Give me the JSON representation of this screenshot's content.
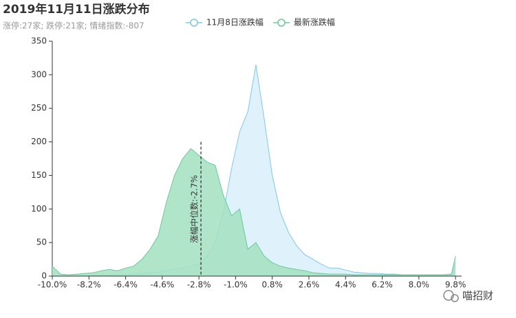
{
  "chart_data": {
    "type": "area",
    "title": "2019年11月11日涨跌分布",
    "subtitle": "涨停:27家; 跌停:21家; 情绪指数:-807",
    "watermark": "喵招财",
    "x": [
      -10,
      -9.6,
      -9.2,
      -8.8,
      -8.4,
      -8,
      -7.6,
      -7.2,
      -6.8,
      -6.4,
      -6,
      -5.6,
      -5.2,
      -4.8,
      -4.4,
      -4,
      -3.6,
      -3.2,
      -2.8,
      -2.4,
      -2,
      -1.6,
      -1.2,
      -0.8,
      -0.4,
      0,
      0.4,
      0.8,
      1.2,
      1.6,
      2,
      2.4,
      2.8,
      3.2,
      3.6,
      4,
      4.4,
      4.8,
      5.2,
      5.6,
      6,
      6.4,
      6.8,
      7.2,
      7.6,
      8,
      8.4,
      8.8,
      9.2,
      9.6,
      9.8
    ],
    "series": [
      {
        "name": "11月8日涨跌幅",
        "color": "#7ec8e8",
        "fill": "#dcf0fa",
        "values": [
          0,
          0,
          0,
          0,
          0,
          1,
          1,
          1,
          2,
          2,
          3,
          4,
          5,
          6,
          8,
          10,
          12,
          15,
          18,
          30,
          50,
          95,
          160,
          215,
          245,
          315,
          235,
          150,
          95,
          65,
          45,
          32,
          25,
          18,
          12,
          12,
          9,
          6,
          5,
          4,
          4,
          3,
          3,
          2,
          2,
          2,
          2,
          2,
          2,
          3,
          20
        ]
      },
      {
        "name": "最新涨跌幅",
        "color": "#66cc99",
        "fill": "#a3e0bf",
        "values": [
          15,
          3,
          2,
          3,
          4,
          5,
          8,
          10,
          8,
          12,
          15,
          25,
          40,
          60,
          110,
          150,
          175,
          190,
          180,
          170,
          165,
          120,
          90,
          100,
          40,
          50,
          30,
          20,
          15,
          12,
          10,
          8,
          5,
          4,
          3,
          3,
          3,
          2,
          2,
          2,
          2,
          2,
          2,
          2,
          2,
          2,
          2,
          2,
          2,
          3,
          30
        ]
      }
    ],
    "annotation": {
      "x": -2.7,
      "label": "涨幅中位数:-2.7%"
    },
    "xlim": [
      -10,
      10.1
    ],
    "xticks": [
      {
        "value": -10,
        "label": "-10.0%"
      },
      {
        "value": -8.2,
        "label": "-8.2%"
      },
      {
        "value": -6.4,
        "label": "-6.4%"
      },
      {
        "value": -4.6,
        "label": "-4.6%"
      },
      {
        "value": -2.8,
        "label": "-2.8%"
      },
      {
        "value": -1,
        "label": "-1.0%"
      },
      {
        "value": 0.8,
        "label": "0.8%"
      },
      {
        "value": 2.6,
        "label": "2.6%"
      },
      {
        "value": 4.4,
        "label": "4.4%"
      },
      {
        "value": 6.2,
        "label": "6.2%"
      },
      {
        "value": 8,
        "label": "8.0%"
      },
      {
        "value": 9.8,
        "label": "9.8%"
      }
    ],
    "ylim": [
      0,
      350
    ],
    "yticks": [
      0,
      50,
      100,
      150,
      200,
      250,
      300,
      350
    ]
  }
}
